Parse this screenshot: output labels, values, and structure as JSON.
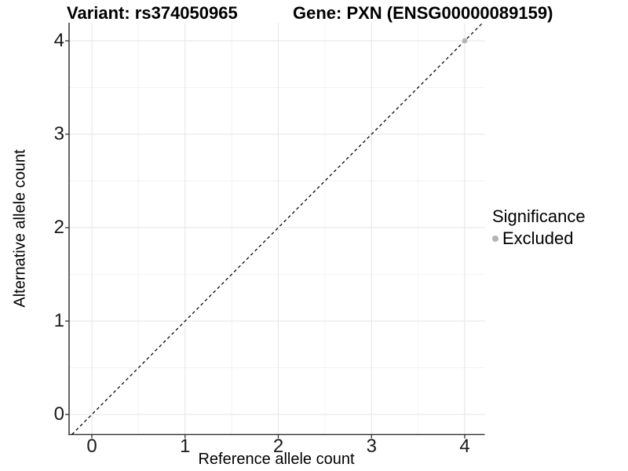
{
  "figure": {
    "title_variant": "Variant: rs374050965",
    "title_gene": "Gene: PXN (ENSG00000089159)"
  },
  "axes": {
    "x": {
      "label": "Reference allele count",
      "ticks": [
        "0",
        "1",
        "2",
        "3",
        "4"
      ]
    },
    "y": {
      "label": "Alternative allele count",
      "ticks": [
        "0",
        "1",
        "2",
        "3",
        "4"
      ]
    }
  },
  "legend": {
    "title": "Significance",
    "items": [
      {
        "label": "Excluded",
        "marker": "circle-icon",
        "color": "#b4b4b4"
      }
    ]
  },
  "chart_data": {
    "type": "scatter",
    "title": "Variant: rs374050965 / Gene: PXN (ENSG00000089159)",
    "xlabel": "Reference allele count",
    "ylabel": "Alternative allele count",
    "xlim": [
      -0.21,
      4.19
    ],
    "ylim": [
      -0.21,
      4.19
    ],
    "x_ticks": [
      0,
      1,
      2,
      3,
      4
    ],
    "y_ticks": [
      0,
      1,
      2,
      3,
      4
    ],
    "minor_ticks": [
      0.5,
      1.5,
      2.5,
      3.5
    ],
    "grid": true,
    "legend_position": "right",
    "series": [
      {
        "name": "Excluded",
        "color": "#b4b4b4",
        "points": [
          {
            "x": 4,
            "y": 4
          }
        ]
      }
    ],
    "reference_line": {
      "equation": "y = x",
      "style": "dashed",
      "color": "#000000"
    }
  },
  "colors": {
    "axis": "#333333",
    "grid_major": "#e6e6e6",
    "grid_minor": "#f3f3f3",
    "background": "#ffffff"
  }
}
